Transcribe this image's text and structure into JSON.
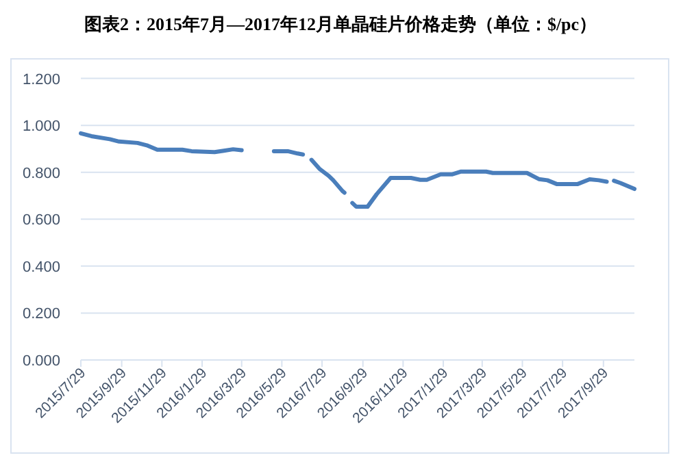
{
  "chart_data": {
    "type": "line",
    "title": "图表2：2015年7月—2017年12月单晶硅片价格走势（单位：$/pc）",
    "x": [
      "2015-07-29",
      "2015-08-14",
      "2015-09-11",
      "2015-09-25",
      "2015-10-23",
      "2015-11-06",
      "2015-11-22",
      "2015-12-30",
      "2016-01-13",
      "2016-02-17",
      "2016-03-02",
      "2016-03-16",
      "2016-03-29",
      "2016-04-23",
      "2016-05-17",
      "2016-06-07",
      "2016-06-22",
      "2016-06-30",
      "2016-07-06",
      "2016-07-13",
      "2016-07-25",
      "2016-08-08",
      "2016-08-15",
      "2016-08-29",
      "2016-09-01",
      "2016-09-07",
      "2016-09-13",
      "2016-09-19",
      "2016-10-06",
      "2016-10-20",
      "2016-11-10",
      "2016-12-11",
      "2016-12-25",
      "2017-01-04",
      "2017-01-25",
      "2017-02-11",
      "2017-02-25",
      "2017-04-04",
      "2017-04-14",
      "2017-06-05",
      "2017-06-23",
      "2017-07-06",
      "2017-07-20",
      "2017-08-21",
      "2017-09-08",
      "2017-09-22",
      "2017-10-04",
      "2017-10-10",
      "2017-10-15",
      "2017-10-25",
      "2017-11-15"
    ],
    "series": [
      {
        "color": "#4a7ebb",
        "values": [
          0.966,
          0.954,
          0.941,
          0.931,
          0.925,
          0.915,
          0.896,
          0.896,
          0.89,
          0.886,
          0.892,
          0.898,
          0.894,
          null,
          0.89,
          0.89,
          0.88,
          0.876,
          null,
          0.853,
          0.815,
          0.785,
          0.766,
          0.72,
          0.713,
          null,
          0.669,
          0.653,
          0.653,
          0.707,
          0.776,
          0.776,
          0.768,
          0.768,
          0.791,
          0.791,
          0.803,
          0.803,
          0.797,
          0.797,
          0.771,
          0.766,
          0.75,
          0.75,
          0.77,
          0.766,
          0.76,
          null,
          0.764,
          0.754,
          0.729
        ]
      }
    ],
    "xlim": [
      "2015-07-29",
      "2017-11-15"
    ],
    "xticks": [
      {
        "value": "2015-07-29",
        "label": "2015/7/29"
      },
      {
        "value": "2015-09-29",
        "label": "2015/9/29"
      },
      {
        "value": "2015-11-29",
        "label": "2015/11/29"
      },
      {
        "value": "2016-01-29",
        "label": "2016/1/29"
      },
      {
        "value": "2016-03-29",
        "label": "2016/3/29"
      },
      {
        "value": "2016-05-29",
        "label": "2016/5/29"
      },
      {
        "value": "2016-07-29",
        "label": "2016/7/29"
      },
      {
        "value": "2016-09-29",
        "label": "2016/9/29"
      },
      {
        "value": "2016-11-29",
        "label": "2016/11/29"
      },
      {
        "value": "2017-01-29",
        "label": "2017/1/29"
      },
      {
        "value": "2017-03-29",
        "label": "2017/3/29"
      },
      {
        "value": "2017-05-29",
        "label": "2017/5/29"
      },
      {
        "value": "2017-07-29",
        "label": "2017/7/29"
      },
      {
        "value": "2017-09-29",
        "label": "2017/9/29"
      }
    ],
    "ylim": [
      0,
      1.2
    ],
    "yticks": [
      {
        "value": 0,
        "label": "0.000"
      },
      {
        "value": 0.2,
        "label": "0.200"
      },
      {
        "value": 0.4,
        "label": "0.400"
      },
      {
        "value": 0.6,
        "label": "0.600"
      },
      {
        "value": 0.8,
        "label": "0.800"
      },
      {
        "value": 1.0,
        "label": "1.000"
      },
      {
        "value": 1.2,
        "label": "1.200"
      }
    ],
    "grid": "y",
    "line_style": "solid"
  }
}
